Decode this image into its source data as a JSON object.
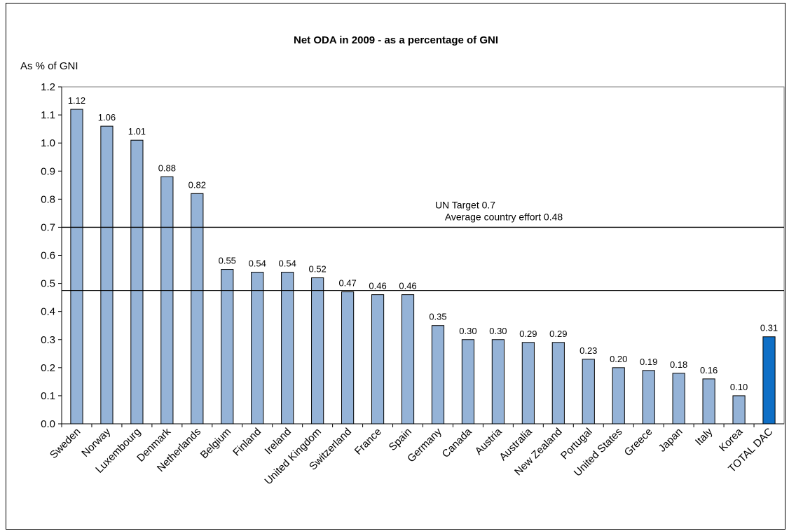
{
  "chart_data": {
    "type": "bar",
    "title": "Net ODA  in 2009 - as a percentage  of GNI",
    "ylabel": "As % of GNI",
    "ylim": [
      0,
      1.2
    ],
    "yticks": [
      "0.0",
      "0.1",
      "0.2",
      "0.3",
      "0.4",
      "0.5",
      "0.6",
      "0.7",
      "0.8",
      "0.9",
      "1.0",
      "1.1",
      "1.2"
    ],
    "categories": [
      "Sweden",
      "Norway",
      "Luxembourg",
      "Denmark",
      "Netherlands",
      "Belgium",
      "Finland",
      "Ireland",
      "United Kingdom",
      "Switzerland",
      "France",
      "Spain",
      "Germany",
      "Canada",
      "Austria",
      "Australia",
      "New Zealand",
      "Portugal",
      "United States",
      "Greece",
      "Japan",
      "Italy",
      "Korea",
      "TOTAL DAC"
    ],
    "values": [
      1.12,
      1.06,
      1.01,
      0.88,
      0.82,
      0.55,
      0.54,
      0.54,
      0.52,
      0.47,
      0.46,
      0.46,
      0.35,
      0.3,
      0.3,
      0.29,
      0.29,
      0.23,
      0.2,
      0.19,
      0.18,
      0.16,
      0.1,
      0.31
    ],
    "value_labels": [
      "1.12",
      "1.06",
      "1.01",
      "0.88",
      "0.82",
      "0.55",
      "0.54",
      "0.54",
      "0.52",
      "0.47",
      "0.46",
      "0.46",
      "0.35",
      "0.30",
      "0.30",
      "0.29",
      "0.29",
      "0.23",
      "0.20",
      "0.19",
      "0.18",
      "0.16",
      "0.10",
      "0.31"
    ],
    "highlight_category": "TOTAL DAC",
    "bar_color": "#95B3D7",
    "highlight_color": "#0F6FC6",
    "grid": false,
    "reference_lines": [
      {
        "value": 0.7,
        "label": "UN Target 0.7"
      },
      {
        "value": 0.475,
        "label": "Average country effort 0.48"
      }
    ]
  }
}
